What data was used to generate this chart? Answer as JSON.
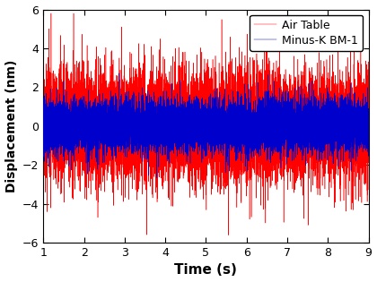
{
  "title": "",
  "xlabel": "Time (s)",
  "ylabel": "Displacement (nm)",
  "xlim": [
    1,
    9
  ],
  "ylim": [
    -6,
    6
  ],
  "xticks": [
    1,
    2,
    3,
    4,
    5,
    6,
    7,
    8,
    9
  ],
  "yticks": [
    -6,
    -4,
    -2,
    0,
    2,
    4,
    6
  ],
  "air_table_color": "#FF0000",
  "minus_k_color": "#0000CC",
  "legend_labels": [
    "Air Table",
    "Minus-K BM-1"
  ],
  "air_table_amplitude": 1.3,
  "air_table_spike_prob": 0.012,
  "air_table_spike_amp": 3.5,
  "minus_k_amplitude": 0.65,
  "minus_k_spike_prob": 0.006,
  "minus_k_spike_amp": 1.8,
  "n_points": 12000,
  "seed": 42,
  "linewidth_air": 0.35,
  "linewidth_mink": 0.35,
  "xlabel_fontsize": 11,
  "ylabel_fontsize": 10,
  "tick_fontsize": 9,
  "legend_fontsize": 9
}
